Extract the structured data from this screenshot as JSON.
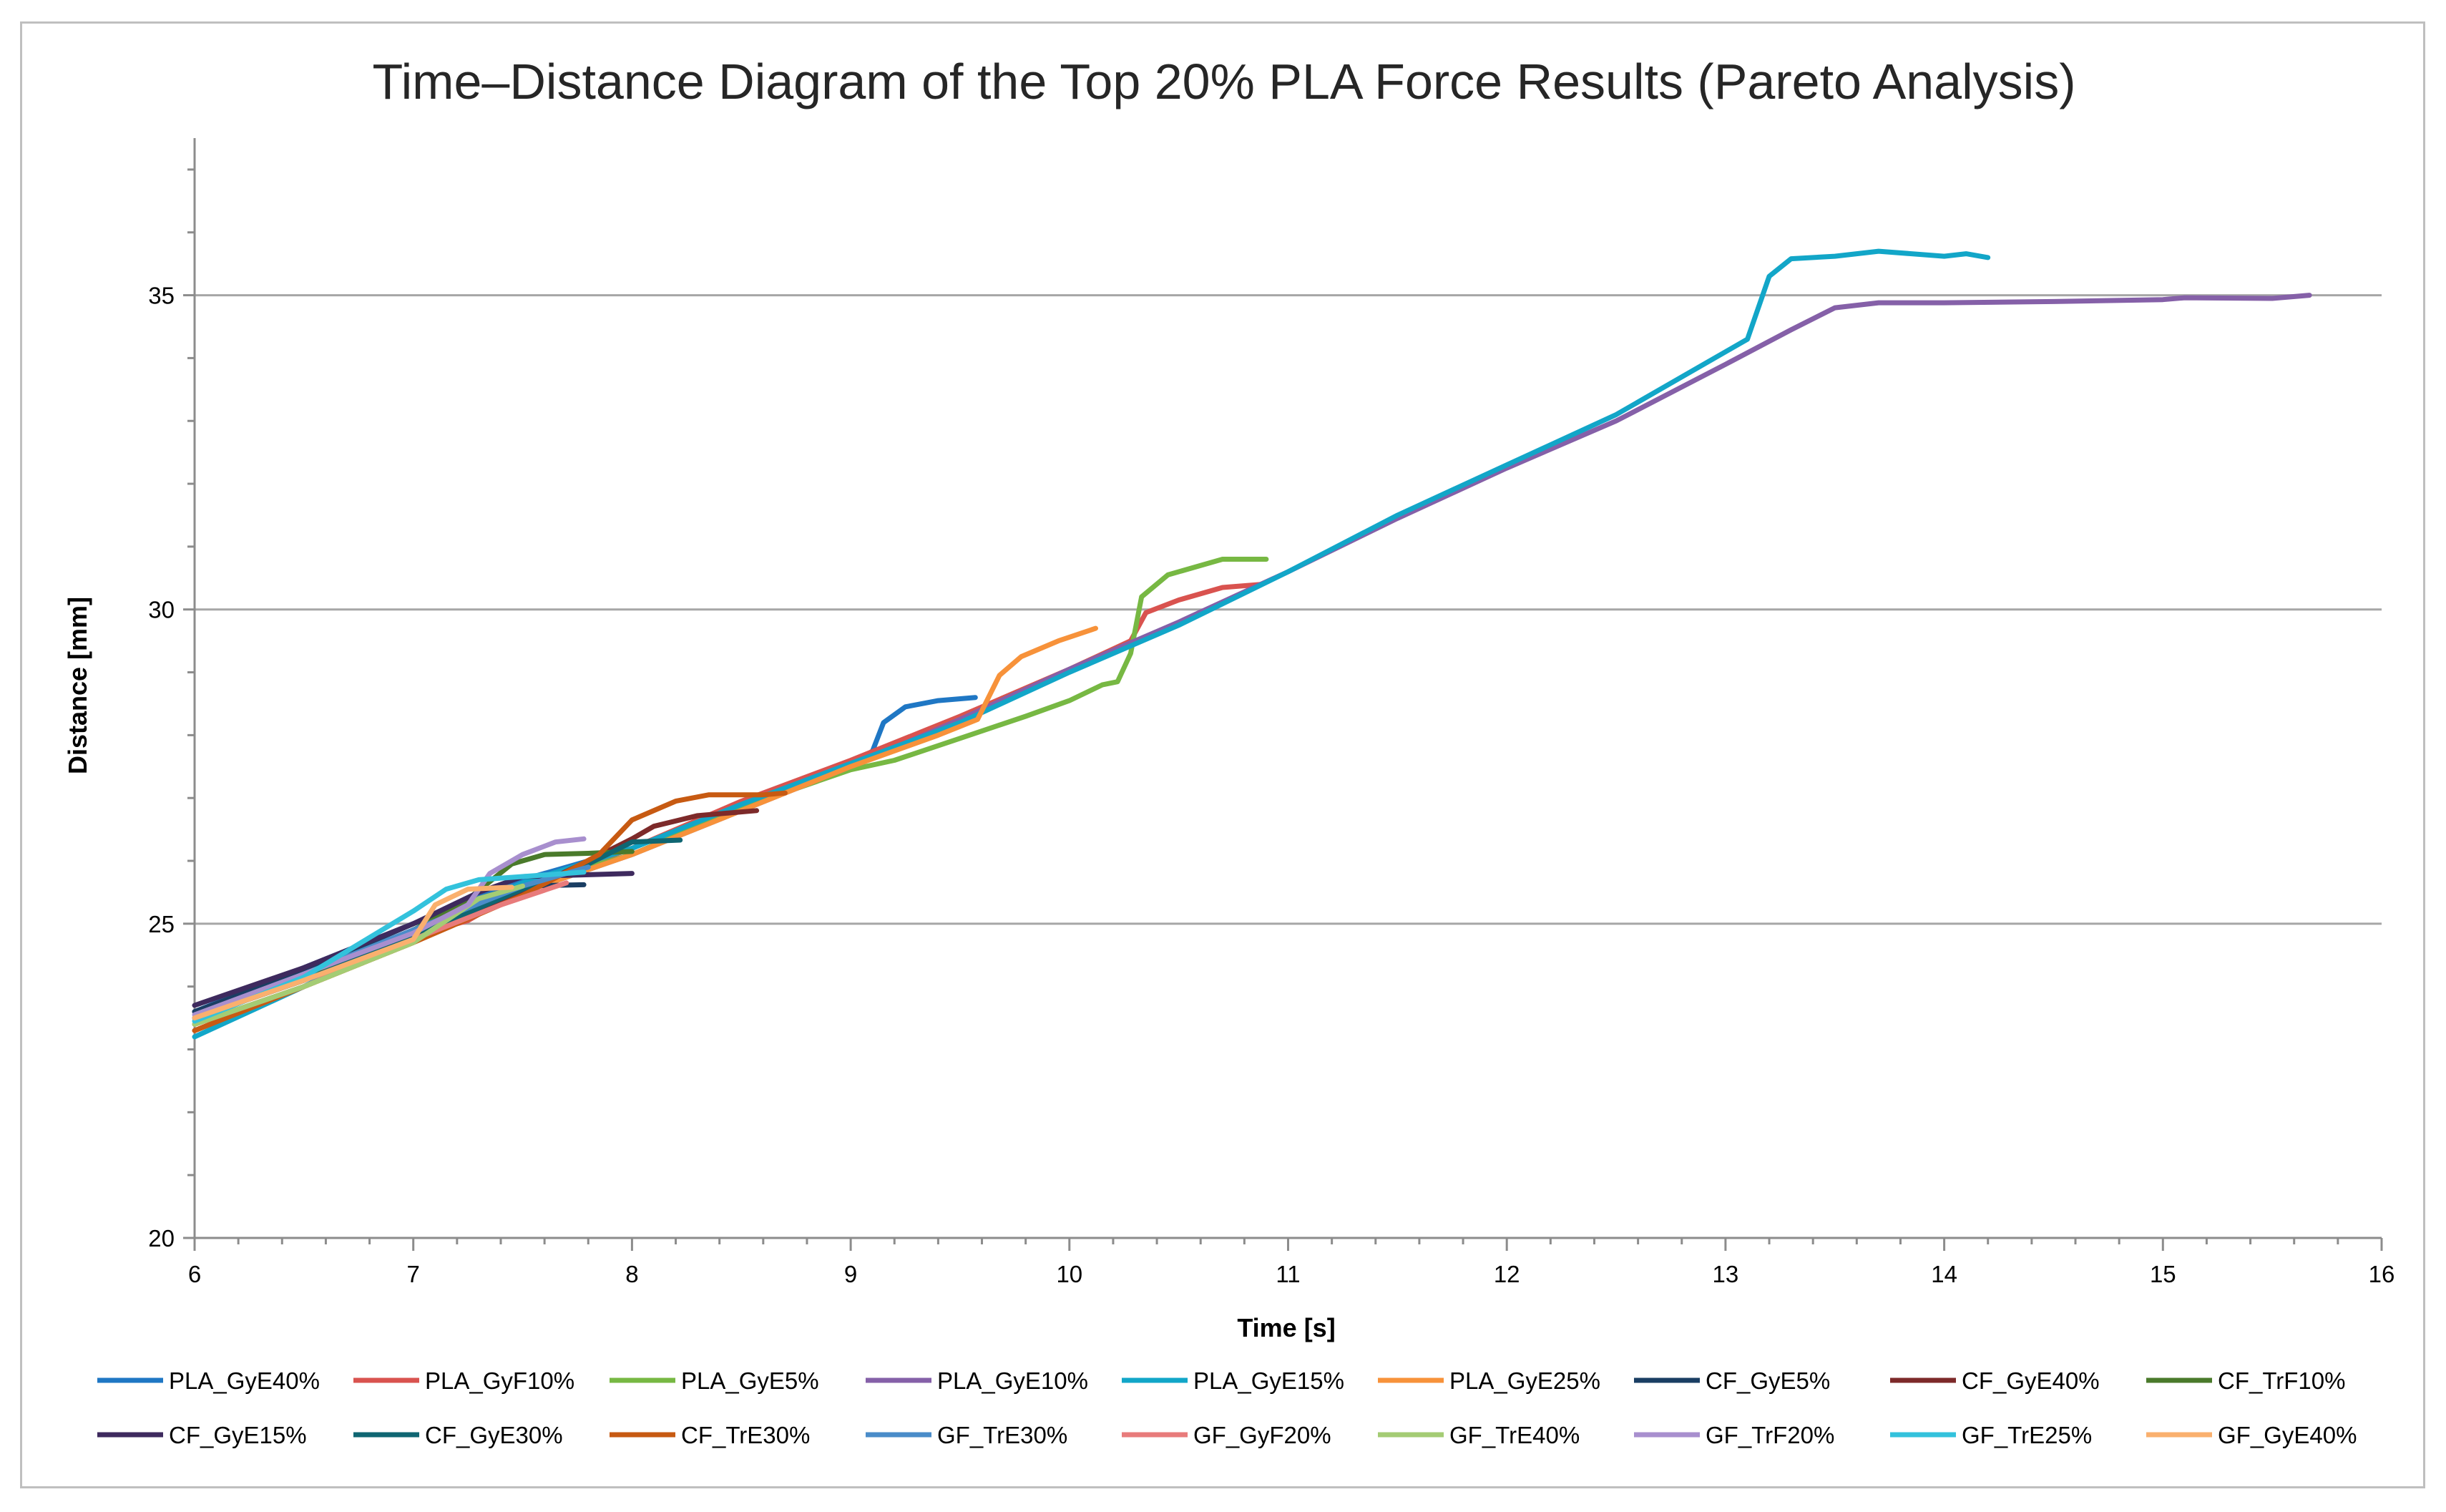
{
  "chart_data": {
    "type": "line",
    "title": "Time–Distance Diagram of the Top 20% PLA Force Results (Pareto Analysis)",
    "xlabel": "Time [s]",
    "ylabel": "Distance [mm]",
    "xlim": [
      6,
      16
    ],
    "ylim": [
      20,
      37.5
    ],
    "xticks": [
      6,
      7,
      8,
      9,
      10,
      11,
      12,
      13,
      14,
      15,
      16
    ],
    "yticks": [
      20,
      25,
      30,
      35
    ],
    "grid": "horizontal major gridlines at 20, 25, 30, 35",
    "legend": "bottom",
    "series": [
      {
        "name": "PLA_GyE40%",
        "color": "#1f77c4",
        "points": [
          [
            6,
            23.6
          ],
          [
            6.5,
            24.3
          ],
          [
            7,
            25.0
          ],
          [
            7.5,
            25.7
          ],
          [
            8,
            26.2
          ],
          [
            8.5,
            26.9
          ],
          [
            9,
            27.5
          ],
          [
            9.1,
            27.75
          ],
          [
            9.15,
            28.2
          ],
          [
            9.25,
            28.45
          ],
          [
            9.4,
            28.55
          ],
          [
            9.57,
            28.6
          ]
        ]
      },
      {
        "name": "PLA_GyF10%",
        "color": "#d9534f",
        "points": [
          [
            6,
            23.3
          ],
          [
            6.5,
            24.0
          ],
          [
            7,
            24.8
          ],
          [
            7.15,
            24.95
          ],
          [
            7.25,
            25.05
          ],
          [
            7.4,
            25.35
          ],
          [
            7.6,
            25.7
          ],
          [
            8,
            26.2
          ],
          [
            8.5,
            26.95
          ],
          [
            9,
            27.6
          ],
          [
            9.5,
            28.3
          ],
          [
            10,
            29.05
          ],
          [
            10.28,
            29.5
          ],
          [
            10.35,
            29.95
          ],
          [
            10.5,
            30.15
          ],
          [
            10.7,
            30.35
          ],
          [
            10.88,
            30.4
          ]
        ]
      },
      {
        "name": "PLA_GyE5%",
        "color": "#77b843",
        "points": [
          [
            6,
            23.4
          ],
          [
            6.5,
            24.0
          ],
          [
            7,
            24.8
          ],
          [
            7.5,
            25.6
          ],
          [
            8,
            26.1
          ],
          [
            8.5,
            26.85
          ],
          [
            9,
            27.45
          ],
          [
            9.2,
            27.6
          ],
          [
            9.5,
            27.95
          ],
          [
            9.8,
            28.3
          ],
          [
            10,
            28.55
          ],
          [
            10.15,
            28.8
          ],
          [
            10.22,
            28.85
          ],
          [
            10.28,
            29.3
          ],
          [
            10.33,
            30.2
          ],
          [
            10.45,
            30.55
          ],
          [
            10.7,
            30.8
          ],
          [
            10.9,
            30.8
          ]
        ]
      },
      {
        "name": "PLA_GyE10%",
        "color": "#8560a8",
        "points": [
          [
            6,
            23.6
          ],
          [
            6.5,
            24.2
          ],
          [
            7,
            24.9
          ],
          [
            7.5,
            25.5
          ],
          [
            8,
            26.1
          ],
          [
            8.5,
            26.8
          ],
          [
            9,
            27.5
          ],
          [
            9.5,
            28.25
          ],
          [
            10,
            29.05
          ],
          [
            10.5,
            29.8
          ],
          [
            11,
            30.6
          ],
          [
            11.5,
            31.45
          ],
          [
            12,
            32.25
          ],
          [
            12.5,
            33.0
          ],
          [
            13,
            33.9
          ],
          [
            13.3,
            34.45
          ],
          [
            13.5,
            34.8
          ],
          [
            13.7,
            34.88
          ],
          [
            14,
            34.88
          ],
          [
            14.5,
            34.9
          ],
          [
            15,
            34.93
          ],
          [
            15.1,
            34.96
          ],
          [
            15.5,
            34.95
          ],
          [
            15.67,
            35.0
          ]
        ]
      },
      {
        "name": "PLA_GyE15%",
        "color": "#12a6c8",
        "points": [
          [
            6,
            23.2
          ],
          [
            6.5,
            24.0
          ],
          [
            7,
            24.9
          ],
          [
            7.5,
            25.65
          ],
          [
            8,
            26.2
          ],
          [
            8.5,
            26.9
          ],
          [
            9,
            27.55
          ],
          [
            9.5,
            28.2
          ],
          [
            10,
            29.0
          ],
          [
            10.5,
            29.75
          ],
          [
            11,
            30.6
          ],
          [
            11.5,
            31.5
          ],
          [
            12,
            32.3
          ],
          [
            12.5,
            33.1
          ],
          [
            13,
            34.1
          ],
          [
            13.1,
            34.3
          ],
          [
            13.2,
            35.3
          ],
          [
            13.3,
            35.58
          ],
          [
            13.5,
            35.62
          ],
          [
            13.7,
            35.7
          ],
          [
            14,
            35.62
          ],
          [
            14.1,
            35.66
          ],
          [
            14.2,
            35.6
          ]
        ]
      },
      {
        "name": "PLA_GyE25%",
        "color": "#f7923a",
        "points": [
          [
            6,
            23.4
          ],
          [
            6.5,
            24.0
          ],
          [
            7,
            24.7
          ],
          [
            7.5,
            25.5
          ],
          [
            8,
            26.1
          ],
          [
            8.5,
            26.8
          ],
          [
            9,
            27.5
          ],
          [
            9.4,
            28.0
          ],
          [
            9.58,
            28.25
          ],
          [
            9.68,
            28.95
          ],
          [
            9.78,
            29.25
          ],
          [
            9.95,
            29.5
          ],
          [
            10.12,
            29.7
          ]
        ]
      },
      {
        "name": "CF_GyE5%",
        "color": "#1a3e63",
        "points": [
          [
            6,
            23.6
          ],
          [
            6.5,
            24.25
          ],
          [
            7,
            25.0
          ],
          [
            7.3,
            25.4
          ],
          [
            7.5,
            25.6
          ],
          [
            7.78,
            25.62
          ]
        ]
      },
      {
        "name": "CF_GyE40%",
        "color": "#7d2a2a",
        "points": [
          [
            6,
            23.5
          ],
          [
            6.5,
            24.1
          ],
          [
            7,
            24.8
          ],
          [
            7.5,
            25.5
          ],
          [
            7.8,
            26.0
          ],
          [
            8.0,
            26.35
          ],
          [
            8.1,
            26.55
          ],
          [
            8.3,
            26.72
          ],
          [
            8.57,
            26.8
          ]
        ]
      },
      {
        "name": "CF_TrF10%",
        "color": "#4a7a2b",
        "points": [
          [
            6,
            23.5
          ],
          [
            6.5,
            24.1
          ],
          [
            7,
            24.9
          ],
          [
            7.2,
            25.25
          ],
          [
            7.45,
            25.95
          ],
          [
            7.6,
            26.1
          ],
          [
            7.8,
            26.12
          ],
          [
            8.0,
            26.15
          ]
        ]
      },
      {
        "name": "CF_GyE15%",
        "color": "#3e2a5e",
        "points": [
          [
            6,
            23.7
          ],
          [
            6.5,
            24.3
          ],
          [
            7,
            25.0
          ],
          [
            7.3,
            25.5
          ],
          [
            7.5,
            25.75
          ],
          [
            8.0,
            25.8
          ]
        ]
      },
      {
        "name": "CF_GyE30%",
        "color": "#0f6672",
        "points": [
          [
            6,
            23.5
          ],
          [
            6.5,
            24.1
          ],
          [
            7,
            24.8
          ],
          [
            7.5,
            25.55
          ],
          [
            7.8,
            25.95
          ],
          [
            8.0,
            26.3
          ],
          [
            8.22,
            26.33
          ]
        ]
      },
      {
        "name": "CF_TrE30%",
        "color": "#c75a12",
        "points": [
          [
            6,
            23.3
          ],
          [
            6.5,
            24.0
          ],
          [
            7,
            24.7
          ],
          [
            7.5,
            25.45
          ],
          [
            7.85,
            26.1
          ],
          [
            8.0,
            26.65
          ],
          [
            8.2,
            26.95
          ],
          [
            8.35,
            27.05
          ],
          [
            8.6,
            27.05
          ],
          [
            8.7,
            27.08
          ]
        ]
      },
      {
        "name": "GF_TrE30%",
        "color": "#4a8cc9",
        "points": [
          [
            6,
            23.5
          ],
          [
            6.5,
            24.2
          ],
          [
            7,
            24.9
          ],
          [
            7.5,
            25.6
          ],
          [
            7.8,
            25.9
          ]
        ]
      },
      {
        "name": "GF_GyF20%",
        "color": "#e87b7b",
        "points": [
          [
            6,
            23.4
          ],
          [
            6.5,
            24.0
          ],
          [
            7,
            24.75
          ],
          [
            7.4,
            25.3
          ],
          [
            7.7,
            25.65
          ]
        ]
      },
      {
        "name": "GF_TrE40%",
        "color": "#a4cc74",
        "points": [
          [
            6,
            23.4
          ],
          [
            6.5,
            24.0
          ],
          [
            7,
            24.7
          ],
          [
            7.3,
            25.4
          ],
          [
            7.5,
            25.6
          ]
        ]
      },
      {
        "name": "GF_TrF20%",
        "color": "#a88fce",
        "points": [
          [
            6,
            23.55
          ],
          [
            6.5,
            24.2
          ],
          [
            7,
            24.85
          ],
          [
            7.25,
            25.3
          ],
          [
            7.35,
            25.8
          ],
          [
            7.5,
            26.1
          ],
          [
            7.65,
            26.3
          ],
          [
            7.78,
            26.35
          ]
        ]
      },
      {
        "name": "GF_TrE25%",
        "color": "#33c2dc",
        "points": [
          [
            6,
            23.45
          ],
          [
            6.5,
            24.15
          ],
          [
            7,
            25.2
          ],
          [
            7.15,
            25.55
          ],
          [
            7.3,
            25.7
          ],
          [
            7.5,
            25.75
          ],
          [
            7.78,
            25.82
          ]
        ]
      },
      {
        "name": "GF_GyE40%",
        "color": "#fab06e",
        "points": [
          [
            6,
            23.5
          ],
          [
            6.5,
            24.1
          ],
          [
            7,
            24.75
          ],
          [
            7.1,
            25.3
          ],
          [
            7.25,
            25.55
          ],
          [
            7.45,
            25.58
          ]
        ]
      }
    ]
  }
}
